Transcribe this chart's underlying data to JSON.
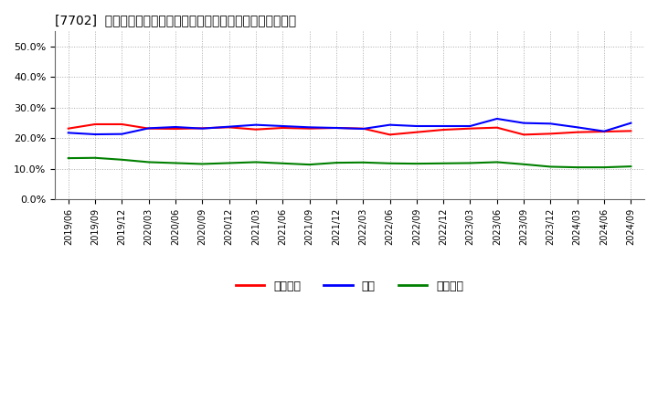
{
  "title": "[7702]  売上債権、在庫、買入債務の総資産に対する比率の推移",
  "x_labels": [
    "2019/06",
    "2019/09",
    "2019/12",
    "2020/03",
    "2020/06",
    "2020/09",
    "2020/12",
    "2021/03",
    "2021/06",
    "2021/09",
    "2021/12",
    "2022/03",
    "2022/06",
    "2022/09",
    "2022/12",
    "2023/03",
    "2023/06",
    "2023/09",
    "2023/12",
    "2024/03",
    "2024/06",
    "2024/09"
  ],
  "urikake": [
    0.232,
    0.246,
    0.246,
    0.232,
    0.231,
    0.233,
    0.236,
    0.229,
    0.234,
    0.232,
    0.234,
    0.232,
    0.212,
    0.22,
    0.228,
    0.232,
    0.235,
    0.212,
    0.215,
    0.22,
    0.222,
    0.224
  ],
  "zaiko": [
    0.218,
    0.213,
    0.214,
    0.233,
    0.237,
    0.232,
    0.238,
    0.244,
    0.24,
    0.236,
    0.234,
    0.231,
    0.244,
    0.24,
    0.24,
    0.24,
    0.264,
    0.25,
    0.248,
    0.236,
    0.223,
    0.25
  ],
  "kaiire": [
    0.135,
    0.136,
    0.13,
    0.122,
    0.119,
    0.116,
    0.119,
    0.122,
    0.118,
    0.114,
    0.12,
    0.121,
    0.118,
    0.117,
    0.118,
    0.119,
    0.122,
    0.115,
    0.107,
    0.105,
    0.105,
    0.108
  ],
  "urikake_color": "#ff0000",
  "zaiko_color": "#0000ff",
  "kaiire_color": "#008000",
  "background_color": "#ffffff",
  "grid_color": "#aaaaaa",
  "ylim": [
    0.0,
    0.55
  ],
  "yticks": [
    0.0,
    0.1,
    0.2,
    0.3,
    0.4,
    0.5
  ],
  "legend_labels": [
    "売上債権",
    "在庫",
    "買入債務"
  ]
}
